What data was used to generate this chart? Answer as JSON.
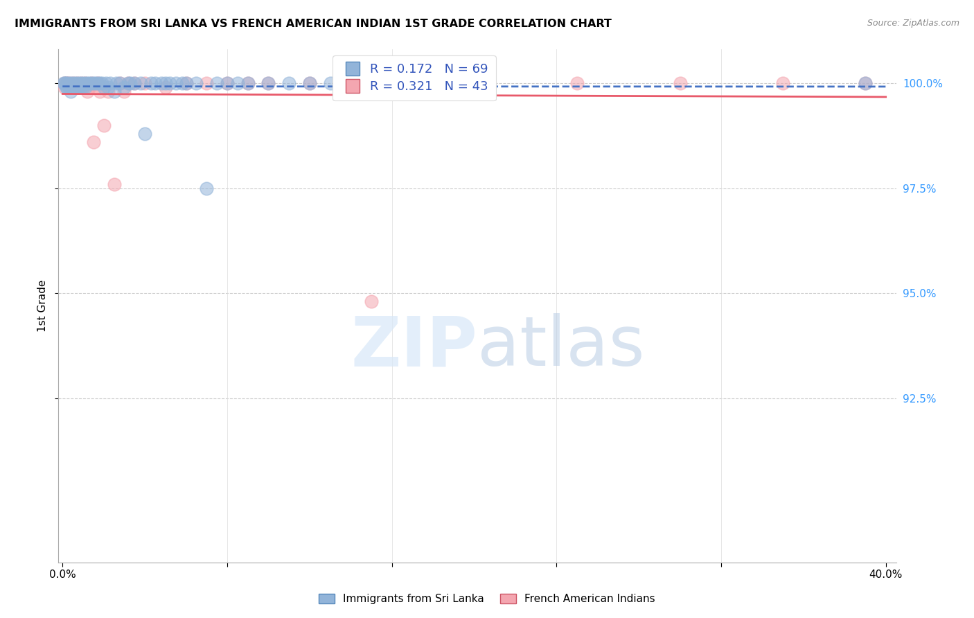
{
  "title": "IMMIGRANTS FROM SRI LANKA VS FRENCH AMERICAN INDIAN 1ST GRADE CORRELATION CHART",
  "source": "Source: ZipAtlas.com",
  "ylabel": "1st Grade",
  "ylim": [
    0.886,
    1.008
  ],
  "xlim": [
    -0.002,
    0.405
  ],
  "yticks": [
    1.0,
    0.975,
    0.95,
    0.925
  ],
  "ytick_labels": [
    "100.0%",
    "97.5%",
    "95.0%",
    "92.5%"
  ],
  "xtick_labels": [
    "0.0%",
    "",
    "",
    "",
    "",
    "",
    "40.0%"
  ],
  "legend1_R": "0.172",
  "legend1_N": "69",
  "legend2_R": "0.321",
  "legend2_N": "43",
  "blue_color": "#92B4D9",
  "pink_color": "#F4A6B0",
  "blue_line_color": "#4472C4",
  "pink_line_color": "#E8596A",
  "blue_scatter_alpha": 0.55,
  "pink_scatter_alpha": 0.55,
  "scatter_size": 180,
  "sri_lanka_x": [
    0.0005,
    0.001,
    0.0015,
    0.002,
    0.002,
    0.002,
    0.003,
    0.003,
    0.004,
    0.004,
    0.004,
    0.005,
    0.005,
    0.006,
    0.006,
    0.007,
    0.007,
    0.008,
    0.008,
    0.009,
    0.009,
    0.01,
    0.01,
    0.011,
    0.011,
    0.012,
    0.013,
    0.014,
    0.015,
    0.016,
    0.017,
    0.018,
    0.019,
    0.02,
    0.021,
    0.022,
    0.023,
    0.025,
    0.026,
    0.028,
    0.03,
    0.032,
    0.033,
    0.035,
    0.038,
    0.04,
    0.043,
    0.045,
    0.048,
    0.05,
    0.052,
    0.055,
    0.058,
    0.06,
    0.065,
    0.07,
    0.075,
    0.08,
    0.085,
    0.09,
    0.1,
    0.11,
    0.12,
    0.13,
    0.14,
    0.15,
    0.16,
    0.2,
    0.39
  ],
  "sri_lanka_y": [
    1.0,
    1.0,
    1.0,
    1.0,
    0.999,
    0.999,
    1.0,
    0.999,
    1.0,
    0.999,
    0.998,
    1.0,
    0.999,
    1.0,
    0.999,
    1.0,
    0.999,
    1.0,
    0.999,
    1.0,
    0.999,
    1.0,
    0.999,
    1.0,
    0.999,
    1.0,
    1.0,
    1.0,
    1.0,
    1.0,
    1.0,
    1.0,
    1.0,
    0.999,
    1.0,
    0.999,
    1.0,
    0.998,
    1.0,
    1.0,
    0.999,
    1.0,
    1.0,
    1.0,
    1.0,
    0.988,
    1.0,
    1.0,
    1.0,
    1.0,
    1.0,
    1.0,
    1.0,
    1.0,
    1.0,
    0.975,
    1.0,
    1.0,
    1.0,
    1.0,
    1.0,
    1.0,
    1.0,
    1.0,
    1.0,
    1.0,
    1.0,
    1.0,
    1.0
  ],
  "french_x": [
    0.001,
    0.001,
    0.002,
    0.003,
    0.004,
    0.005,
    0.006,
    0.007,
    0.008,
    0.009,
    0.01,
    0.011,
    0.012,
    0.013,
    0.014,
    0.015,
    0.016,
    0.017,
    0.018,
    0.02,
    0.022,
    0.025,
    0.028,
    0.03,
    0.032,
    0.035,
    0.04,
    0.05,
    0.06,
    0.07,
    0.08,
    0.09,
    0.1,
    0.12,
    0.14,
    0.16,
    0.18,
    0.2,
    0.25,
    0.3,
    0.35,
    0.39,
    0.15
  ],
  "french_y": [
    1.0,
    0.999,
    1.0,
    1.0,
    0.999,
    1.0,
    0.999,
    1.0,
    0.999,
    1.0,
    0.999,
    1.0,
    0.998,
    0.999,
    1.0,
    0.986,
    0.999,
    1.0,
    0.998,
    0.99,
    0.998,
    0.976,
    1.0,
    0.998,
    1.0,
    1.0,
    1.0,
    0.999,
    1.0,
    1.0,
    1.0,
    1.0,
    1.0,
    1.0,
    1.0,
    1.0,
    1.0,
    1.0,
    1.0,
    1.0,
    1.0,
    1.0,
    0.948
  ]
}
